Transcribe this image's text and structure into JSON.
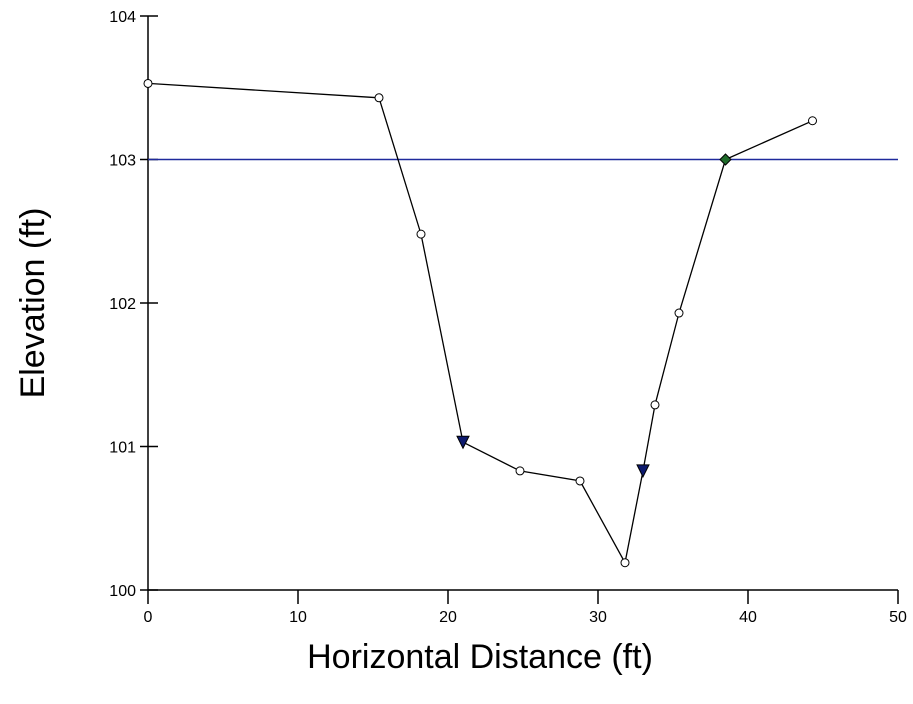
{
  "chart_data": {
    "type": "line",
    "xlabel": "Horizontal Distance (ft)",
    "ylabel": "Elevation (ft)",
    "xlim": [
      0,
      50
    ],
    "ylim": [
      100,
      104
    ],
    "x_ticks": [
      "0",
      "10",
      "20",
      "30",
      "40",
      "50"
    ],
    "y_ticks": [
      "100",
      "101",
      "102",
      "103",
      "104"
    ],
    "grid": false,
    "series": [
      {
        "type": "line",
        "points": [
          {
            "x": 0,
            "y": 103.53,
            "marker": "circle"
          },
          {
            "x": 15.4,
            "y": 103.43,
            "marker": "circle"
          },
          {
            "x": 18.2,
            "y": 102.48,
            "marker": "circle"
          },
          {
            "x": 21.0,
            "y": 101.03,
            "marker": "triangle-down"
          },
          {
            "x": 24.8,
            "y": 100.83,
            "marker": "circle"
          },
          {
            "x": 28.8,
            "y": 100.76,
            "marker": "circle"
          },
          {
            "x": 31.8,
            "y": 100.19,
            "marker": "circle"
          },
          {
            "x": 33.0,
            "y": 100.83,
            "marker": "triangle-down"
          },
          {
            "x": 33.8,
            "y": 101.29,
            "marker": "circle"
          },
          {
            "x": 35.4,
            "y": 101.93,
            "marker": "circle"
          },
          {
            "x": 38.5,
            "y": 103.0,
            "marker": "diamond-filled"
          },
          {
            "x": 44.3,
            "y": 103.27,
            "marker": "circle"
          }
        ]
      },
      {
        "type": "hline",
        "y": 103.0,
        "color": "#1f2a9c"
      }
    ]
  }
}
